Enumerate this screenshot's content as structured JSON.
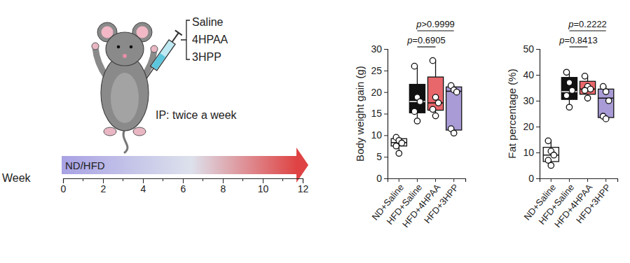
{
  "chart_data": [
    {
      "type": "box",
      "y_label": "Body weight gain (g)",
      "categories": [
        "ND+Saline",
        "HFD+Saline",
        "HFD+4HPAA",
        "HFD+3HPP"
      ],
      "colors": [
        "#ffffff",
        "#111111",
        "#e8676b",
        "#a99bd6"
      ],
      "ylim": [
        0,
        30
      ],
      "yticks": [
        0,
        5,
        10,
        15,
        20,
        25,
        30
      ],
      "boxes": [
        {
          "min": 5.8,
          "q1": 7.5,
          "median": 8.3,
          "q3": 9.2,
          "max": 9.5
        },
        {
          "min": 13.3,
          "q1": 15.2,
          "median": 17.8,
          "q3": 21.8,
          "max": 26
        },
        {
          "min": 14.5,
          "q1": 15.8,
          "median": 17.5,
          "q3": 23.5,
          "max": 27.3
        },
        {
          "min": 10.5,
          "q1": 11.2,
          "median": 20.2,
          "q3": 21.2,
          "max": 21.5
        }
      ],
      "points": [
        [
          9.5,
          8.8,
          8.2,
          7.5,
          5.8
        ],
        [
          26,
          18.8,
          17.8,
          15.5,
          13.3
        ],
        [
          27.3,
          18.8,
          17.5,
          16,
          14.5
        ],
        [
          21.5,
          20.5,
          20,
          11.5,
          10.5
        ]
      ],
      "annotations": [
        {
          "text": "p=0.6905",
          "groups": [
            "HFD+Saline",
            "HFD+4HPAA"
          ]
        },
        {
          "text": "p>0.9999",
          "groups": [
            "HFD+Saline",
            "HFD+3HPP"
          ]
        }
      ]
    },
    {
      "type": "box",
      "y_label": "Fat percentage (%)",
      "categories": [
        "ND+Saline",
        "HFD+Saline",
        "HFD+4HPAA",
        "HFD+3HPP"
      ],
      "colors": [
        "#ffffff",
        "#111111",
        "#e8676b",
        "#a99bd6"
      ],
      "ylim": [
        0,
        50
      ],
      "yticks": [
        0,
        10,
        20,
        30,
        40,
        50
      ],
      "boxes": [
        {
          "min": 5,
          "q1": 6.5,
          "median": 9,
          "q3": 12,
          "max": 14.5
        },
        {
          "min": 27.5,
          "q1": 30.5,
          "median": 33.5,
          "q3": 39,
          "max": 41
        },
        {
          "min": 31,
          "q1": 32.5,
          "median": 34.5,
          "q3": 37.5,
          "max": 39.5
        },
        {
          "min": 23,
          "q1": 23.5,
          "median": 31,
          "q3": 34.5,
          "max": 35.5
        }
      ],
      "points": [
        [
          14.5,
          10.5,
          9,
          7,
          5
        ],
        [
          41,
          37,
          34,
          32,
          27.5
        ],
        [
          39.5,
          35.5,
          34.5,
          34,
          31
        ],
        [
          35.5,
          33.5,
          30,
          24,
          23
        ]
      ],
      "annotations": [
        {
          "text": "p=0.8413",
          "groups": [
            "HFD+Saline",
            "HFD+4HPAA"
          ]
        },
        {
          "text": "p=0.2222",
          "groups": [
            "HFD+Saline",
            "HFD+3HPP"
          ]
        }
      ]
    }
  ],
  "schematic": {
    "treatments": [
      "Saline",
      "4HPAA",
      "3HPP"
    ],
    "route": "IP: twice a week",
    "diet": "ND/HFD",
    "timeline": {
      "label": "Week",
      "xlim": [
        0,
        12
      ],
      "xticks": [
        0,
        2,
        4,
        6,
        8,
        10,
        12
      ],
      "minor_xticks": [
        1,
        3,
        5,
        7,
        9,
        11
      ]
    }
  }
}
